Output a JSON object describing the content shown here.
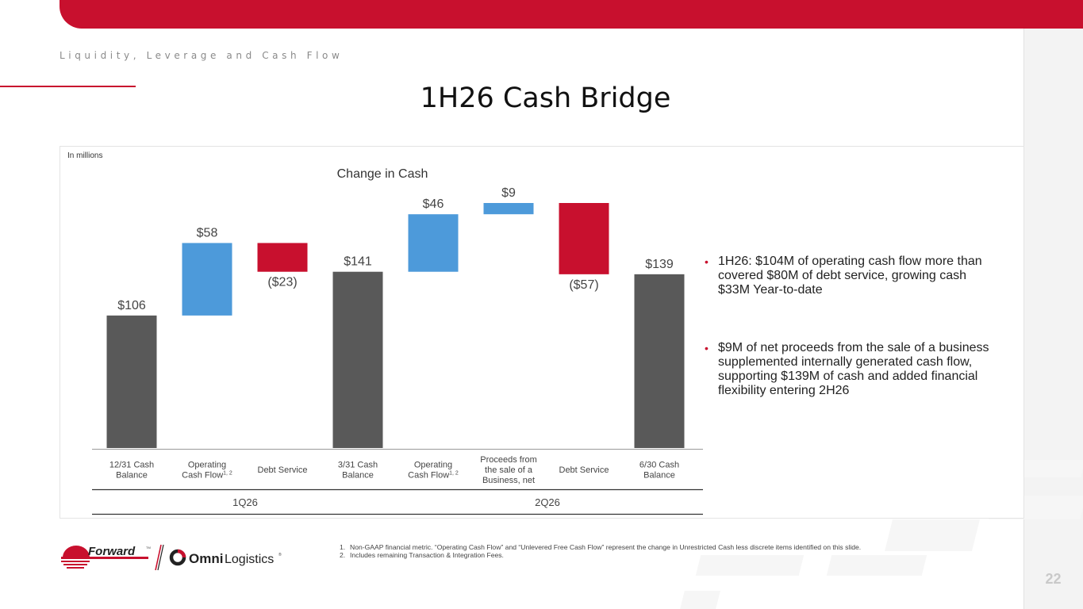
{
  "header": {
    "section_label": "Liquidity, Leverage and Cash Flow",
    "title": "1H26 Cash Bridge",
    "page_number": "22"
  },
  "colors": {
    "accent": "#c8102e",
    "balance": "#595959",
    "increase": "#4d9ada",
    "decrease": "#c8102e"
  },
  "chart_data": {
    "type": "bar",
    "subtype": "waterfall",
    "title": "Change in Cash",
    "unit_note": "In millions",
    "steps": [
      {
        "category": "12/31 Cash Balance",
        "lines": [
          "12/31 Cash",
          "Balance"
        ],
        "value": 106,
        "kind": "total",
        "label": "$106",
        "group": "1Q26"
      },
      {
        "category": "Operating Cash Flow1, 2",
        "lines": [
          "Operating",
          "Cash Flow"
        ],
        "superscript": "1, 2",
        "value": 58,
        "kind": "increase",
        "label": "$58",
        "group": "1Q26"
      },
      {
        "category": "Debt Service",
        "lines": [
          "Debt Service"
        ],
        "value": -23,
        "kind": "decrease",
        "label": "($23)",
        "group": "1Q26"
      },
      {
        "category": "3/31 Cash Balance",
        "lines": [
          "3/31 Cash",
          "Balance"
        ],
        "value": 141,
        "kind": "total",
        "label": "$141",
        "group": "2Q26"
      },
      {
        "category": "Operating Cash Flow1, 2",
        "lines": [
          "Operating",
          "Cash Flow"
        ],
        "superscript": "1, 2",
        "value": 46,
        "kind": "increase",
        "label": "$46",
        "group": "2Q26"
      },
      {
        "category": "Proceeds from the sale of a Business, net",
        "lines": [
          "Proceeds from",
          "the sale of a",
          "Business, net"
        ],
        "value": 9,
        "kind": "increase",
        "label": "$9",
        "group": "2Q26"
      },
      {
        "category": "Debt Service",
        "lines": [
          "Debt Service"
        ],
        "value": -57,
        "kind": "decrease",
        "label": "($57)",
        "group": "2Q26"
      },
      {
        "category": "6/30 Cash Balance",
        "lines": [
          "6/30 Cash",
          "Balance"
        ],
        "value": 139,
        "kind": "total",
        "label": "$139",
        "group": "2Q26"
      }
    ],
    "groups": [
      "1Q26",
      "2Q26"
    ],
    "ylim": [
      0,
      196
    ],
    "grid": false,
    "legend": "none"
  },
  "bullets": [
    "1H26: $104M of operating cash flow more than covered $80M of debt service, growing cash $33M Year-to-date",
    "$9M of net proceeds from the sale of a business supplemented internally generated cash flow, supporting $139M of cash and added financial flexibility entering 2H26"
  ],
  "footnotes": [
    {
      "num": "1.",
      "text": "Non-GAAP financial metric. “Operating Cash Flow” and “Unlevered Free Cash Flow” represent the change in Unrestricted Cash less discrete items identified on this slide."
    },
    {
      "num": "2.",
      "text": "Includes remaining Transaction & Integration Fees."
    }
  ],
  "logos": {
    "forward": "Forward",
    "forward_mark": "TM",
    "omni_bold": "Omni",
    "omni_light": "Logistics",
    "omni_mark": "®"
  },
  "icons": {
    "forward_logo": "forward-logo-icon",
    "omni_logo": "omni-logo-icon"
  }
}
